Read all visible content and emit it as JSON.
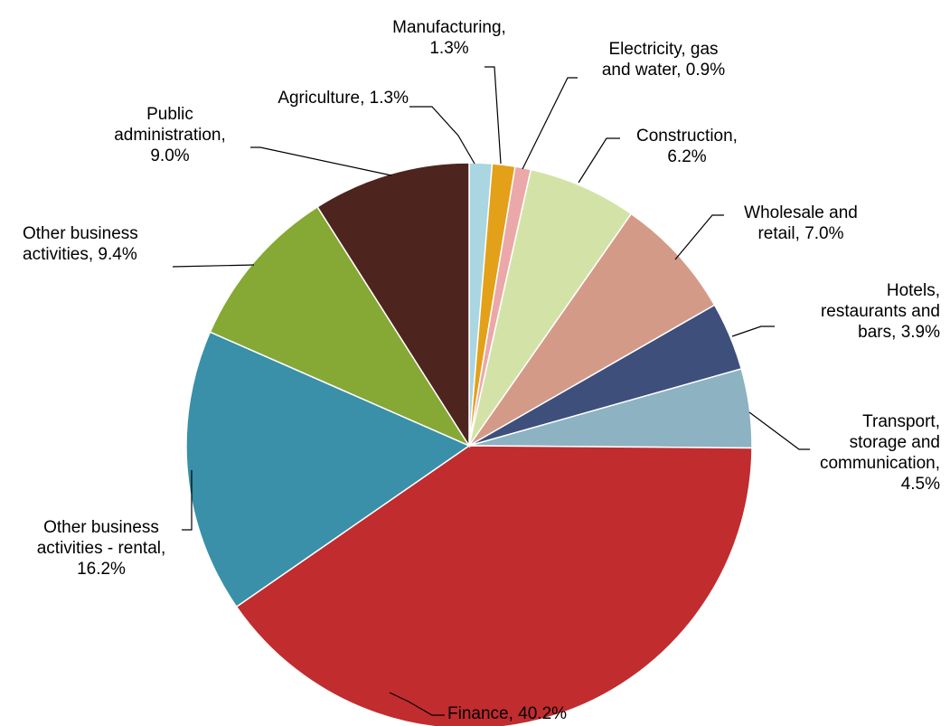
{
  "chart_data": {
    "type": "pie",
    "slices": [
      {
        "label": [
          "Agriculture, 1.3%"
        ],
        "name": "Agriculture",
        "value": 1.3,
        "color": "#A9D6E0"
      },
      {
        "label": [
          "Manufacturing,",
          "1.3%"
        ],
        "name": "Manufacturing",
        "value": 1.3,
        "color": "#E3A019"
      },
      {
        "label": [
          "Electricity, gas",
          "and water, 0.9%"
        ],
        "name": "Electricity, gas and water",
        "value": 0.9,
        "color": "#EBA8A8"
      },
      {
        "label": [
          "Construction,",
          "6.2%"
        ],
        "name": "Construction",
        "value": 6.2,
        "color": "#D3E3A8"
      },
      {
        "label": [
          "Wholesale and",
          "retail, 7.0%"
        ],
        "name": "Wholesale and retail",
        "value": 7.0,
        "color": "#D49A88"
      },
      {
        "label": [
          "Hotels,",
          "restaurants and",
          "bars, 3.9%"
        ],
        "name": "Hotels, restaurants and bars",
        "value": 3.9,
        "color": "#3E4F7C"
      },
      {
        "label": [
          "Transport,",
          "storage and",
          "communication,",
          "4.5%"
        ],
        "name": "Transport, storage and communication",
        "value": 4.5,
        "color": "#8DB2C2"
      },
      {
        "label": [
          "Finance, 40.2%"
        ],
        "name": "Finance",
        "value": 40.2,
        "color": "#C12C2F"
      },
      {
        "label": [
          "Other business",
          "activities - rental,",
          "16.2%"
        ],
        "name": "Other business activities - rental",
        "value": 16.2,
        "color": "#3990A8"
      },
      {
        "label": [
          "Other business",
          "activities, 9.4%"
        ],
        "name": "Other business activities",
        "value": 9.4,
        "color": "#86A834"
      },
      {
        "label": [
          "Public",
          "administration,",
          "9.0%"
        ],
        "name": "Public administration",
        "value": 9.0,
        "color": "#4E241E"
      }
    ]
  }
}
